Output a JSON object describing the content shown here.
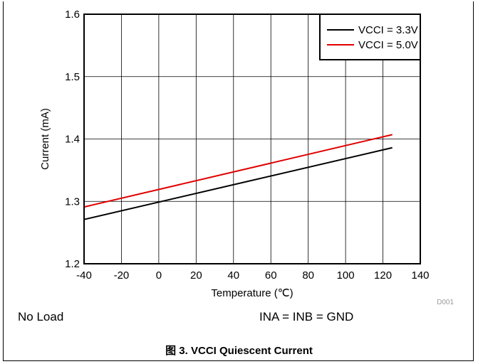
{
  "chart_data": {
    "type": "line",
    "xlabel": "Temperature (℃)",
    "ylabel": "Current (mA)",
    "xlim": [
      -40,
      140
    ],
    "ylim": [
      1.2,
      1.6
    ],
    "xticks": [
      -40,
      -20,
      0,
      20,
      40,
      60,
      80,
      100,
      120,
      140
    ],
    "yticks": [
      1.2,
      1.3,
      1.4,
      1.5,
      1.6
    ],
    "ytick_labels": [
      "1.2",
      "1.3",
      "1.4",
      "1.5",
      "1.6"
    ],
    "grid": true,
    "legend_position": "top-right",
    "series": [
      {
        "name": "VCCI = 3.3V",
        "color": "#000000",
        "x": [
          -40,
          125
        ],
        "y": [
          1.271,
          1.386
        ]
      },
      {
        "name": "VCCI = 5.0V",
        "color": "#e00000",
        "x": [
          -40,
          125
        ],
        "y": [
          1.291,
          1.407
        ]
      }
    ],
    "figure_id": "D001"
  },
  "conditions": {
    "left": "No Load",
    "right": "INA = INB = GND"
  },
  "caption": "图 3.  VCCI Quiescent Current"
}
